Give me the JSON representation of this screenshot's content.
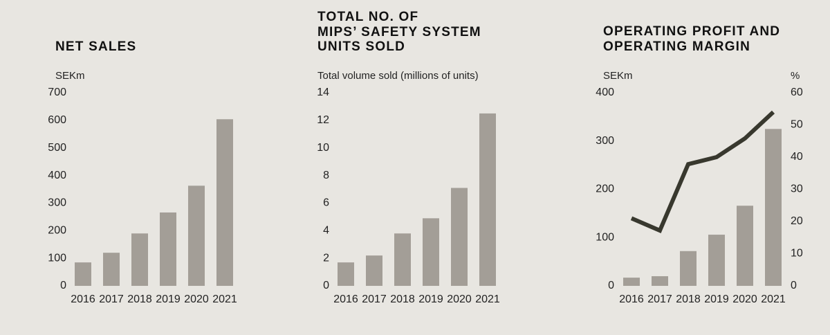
{
  "chart_data": [
    {
      "type": "bar",
      "title": [
        "NET SALES"
      ],
      "y_label": "SEKm",
      "categories": [
        "2016",
        "2017",
        "2018",
        "2019",
        "2020",
        "2021"
      ],
      "values": [
        85,
        120,
        190,
        266,
        363,
        604
      ],
      "color": "#a39e97",
      "ylim": [
        0,
        700
      ],
      "yticks": [
        0,
        100,
        200,
        300,
        400,
        500,
        600,
        700
      ]
    },
    {
      "type": "bar",
      "title": [
        "TOTAL NO. OF",
        "MIPS’ SAFETY SYSTEM",
        "UNITS SOLD"
      ],
      "y_label": "Total volume sold (millions of units)",
      "categories": [
        "2016",
        "2017",
        "2018",
        "2019",
        "2020",
        "2021"
      ],
      "values": [
        1.7,
        2.2,
        3.8,
        4.9,
        7.1,
        12.5
      ],
      "color": "#a39e97",
      "ylim": [
        0,
        14
      ],
      "yticks": [
        0,
        2,
        4,
        6,
        8,
        10,
        12,
        14
      ]
    },
    {
      "type": "combo",
      "title": [
        "OPERATING PROFIT AND",
        "OPERATING MARGIN"
      ],
      "y_label": "SEKm",
      "y2_label": "%",
      "categories": [
        "2016",
        "2017",
        "2018",
        "2019",
        "2020",
        "2021"
      ],
      "series": [
        {
          "type": "bar",
          "color": "#a39e97",
          "values": [
            17,
            20,
            72,
            106,
            166,
            325
          ]
        },
        {
          "type": "line",
          "axis": "y2",
          "color": "#38382e",
          "values": [
            21,
            17.2,
            37.8,
            40,
            45.8,
            54
          ]
        }
      ],
      "ylim": [
        0,
        400
      ],
      "yticks": [
        0,
        100,
        200,
        300,
        400
      ],
      "y2lim": [
        0,
        60
      ],
      "y2ticks": [
        0,
        10,
        20,
        30,
        40,
        50,
        60
      ]
    }
  ]
}
